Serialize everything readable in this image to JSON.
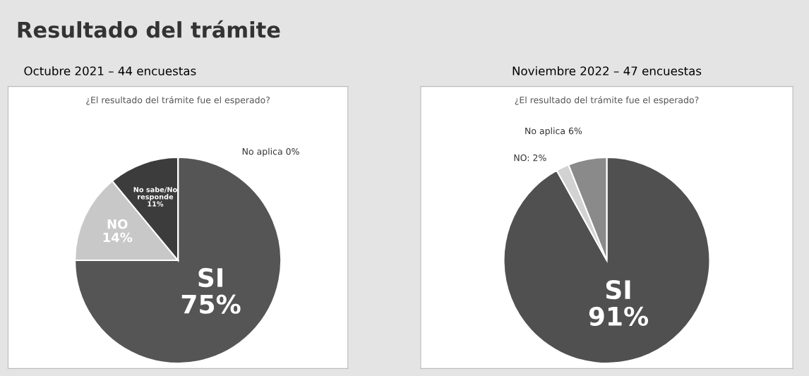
{
  "chart_data": [
    {
      "type": "pie",
      "title": "Octubre 2021 – 44 encuestas",
      "subtitle": "¿El resultado del trámite fue el esperado?",
      "annotations": [
        "Resultado del trámite"
      ],
      "categories": [
        null,
        null,
        null,
        null
      ],
      "values": [
        75,
        14,
        11,
        0
      ],
      "value_labels": [
        "SI\n75%",
        "NO\n14%",
        "No sabe/No\nresponde\n11%",
        "No aplica 0%"
      ],
      "colors": [
        "#555555",
        "#c8c8c8",
        "#3c3c3c",
        "#8a8a8a"
      ]
    },
    {
      "type": "pie",
      "title": "Noviembre 2022 – 47 encuestas",
      "subtitle": "¿El resultado del trámite fue el esperado?",
      "categories": [
        null,
        null,
        null
      ],
      "values": [
        91,
        2,
        6
      ],
      "value_labels": [
        "SI\n91%",
        "NO: 2%",
        "No aplica 6%"
      ],
      "colors": [
        "#505050",
        "#d2d2d2",
        "#8a8a8a"
      ]
    }
  ]
}
